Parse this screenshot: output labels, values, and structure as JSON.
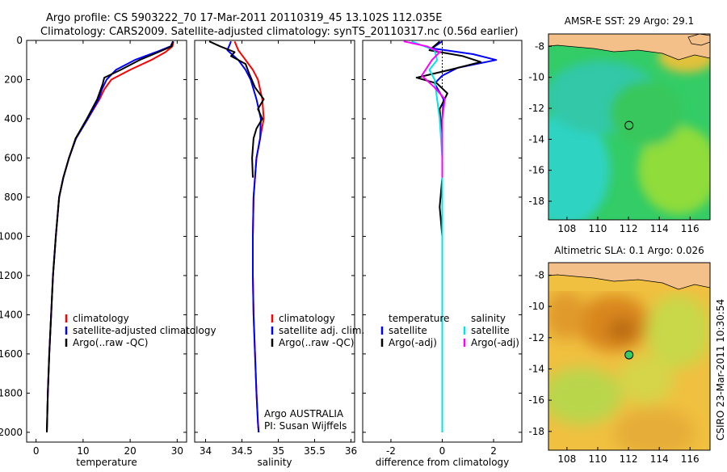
{
  "header": {
    "line1": "Argo profile: CS 5903222_70 17-Mar-2011 20110319_45 13.102S 112.035E",
    "line2": "Climatology: CARS2009. Satellite-adjusted climatology: synTS_20110317.nc (0.56d earlier)"
  },
  "side_caption": "CSIRO 23-Mar-2011 10:30:54",
  "colors": {
    "climatology": "#ff0000",
    "satellite": "#0000ff",
    "argo": "#000000",
    "diff_temp_satellite": "#0000ff",
    "diff_sal_satellite": "#00e5e5",
    "diff_sal_argo": "#ff00ff",
    "land": "#f4c08a"
  },
  "chart_data": [
    {
      "type": "line",
      "panel": "temperature",
      "xlabel": "temperature",
      "ylabel": "",
      "xlim": [
        -2,
        32
      ],
      "ylim": [
        2050,
        0
      ],
      "xticks": [
        0,
        10,
        20,
        30
      ],
      "yticks": [
        0,
        200,
        400,
        600,
        800,
        1000,
        1200,
        1400,
        1600,
        1800,
        2000
      ],
      "legend": {
        "placement": "lower-middle",
        "entries": [
          "climatology",
          "satellite-adjusted climatology",
          "Argo(..raw -QC)"
        ]
      },
      "series": [
        {
          "name": "climatology",
          "x": [
            29.2,
            29.0,
            27.5,
            24.5,
            20.0,
            16.0,
            14.5,
            13.5,
            11.0,
            8.5,
            7.0,
            5.8,
            4.9,
            4.2,
            3.6,
            3.2,
            2.8,
            2.5,
            2.3
          ],
          "y": [
            5,
            30,
            60,
            100,
            150,
            200,
            250,
            300,
            400,
            500,
            600,
            700,
            800,
            1000,
            1200,
            1400,
            1600,
            1800,
            2000
          ]
        },
        {
          "name": "satellite-adjusted climatology",
          "x": [
            29.1,
            28.6,
            25.5,
            21.0,
            17.0,
            15.0,
            14.0,
            13.3,
            11.0,
            8.5,
            7.0,
            5.8,
            4.9,
            4.2,
            3.6,
            3.2,
            2.8,
            2.5,
            2.3
          ],
          "y": [
            5,
            30,
            60,
            100,
            150,
            200,
            250,
            300,
            400,
            500,
            600,
            700,
            800,
            1000,
            1200,
            1400,
            1600,
            1800,
            2000
          ]
        },
        {
          "name": "Argo(..raw -QC)",
          "x": [
            29.1,
            28.8,
            26.0,
            22.0,
            18.0,
            14.5,
            14.2,
            13.0,
            10.8,
            8.4,
            7.0,
            5.8,
            4.9,
            4.2,
            3.6,
            3.2,
            2.8,
            2.5,
            2.3
          ],
          "y": [
            5,
            30,
            60,
            100,
            150,
            190,
            220,
            300,
            400,
            500,
            600,
            700,
            800,
            1000,
            1200,
            1400,
            1600,
            1800,
            2000
          ]
        }
      ]
    },
    {
      "type": "line",
      "panel": "salinity",
      "xlabel": "salinity",
      "xlim": [
        33.85,
        36.05
      ],
      "ylim": [
        2050,
        0
      ],
      "xticks": [
        34,
        34.5,
        35,
        35.5,
        36
      ],
      "legend": {
        "placement": "lower-right",
        "entries": [
          "climatology",
          "satellite adj. clim.",
          "Argo(..raw -QC)"
        ]
      },
      "annotations": [
        "Argo AUSTRALIA",
        "PI: Susan Wijffels"
      ],
      "series": [
        {
          "name": "climatology",
          "x": [
            34.4,
            34.45,
            34.55,
            34.65,
            34.72,
            34.78,
            34.8,
            34.75,
            34.7,
            34.68,
            34.66,
            34.65,
            34.65,
            34.66,
            34.68,
            34.7,
            34.72,
            34.73
          ],
          "y": [
            5,
            50,
            100,
            150,
            200,
            300,
            400,
            500,
            600,
            700,
            800,
            1000,
            1200,
            1400,
            1600,
            1800,
            1950,
            2000
          ]
        },
        {
          "name": "satellite adj. clim.",
          "x": [
            34.35,
            34.3,
            34.45,
            34.55,
            34.62,
            34.7,
            34.76,
            34.75,
            34.7,
            34.68,
            34.66,
            34.65,
            34.65,
            34.66,
            34.68,
            34.7,
            34.72,
            34.73
          ],
          "y": [
            5,
            50,
            100,
            150,
            200,
            300,
            400,
            500,
            600,
            700,
            800,
            1000,
            1200,
            1400,
            1600,
            1800,
            1950,
            2000
          ]
        },
        {
          "name": "Argo(..raw -QC)",
          "x": [
            34.05,
            34.2,
            34.4,
            34.35,
            34.55,
            34.6,
            34.68,
            34.8,
            34.72,
            34.78,
            34.7,
            34.66,
            34.64,
            34.65
          ],
          "y": [
            5,
            30,
            60,
            80,
            120,
            170,
            240,
            300,
            350,
            400,
            450,
            500,
            600,
            700
          ]
        }
      ]
    },
    {
      "type": "line",
      "panel": "difference",
      "xlabel": "difference from climatology",
      "xlim": [
        -3.1,
        3.1
      ],
      "ylim": [
        2050,
        0
      ],
      "xticks": [
        -2,
        0,
        2
      ],
      "legend": {
        "placement": "lower",
        "groups": [
          {
            "title": "temperature",
            "entries": [
              "satellite",
              "Argo(-adj)"
            ]
          },
          {
            "title": "salinity",
            "entries": [
              "satellite",
              "Argo(-adj)"
            ]
          }
        ]
      },
      "series": [
        {
          "name": "temperature satellite",
          "x": [
            0.0,
            -0.4,
            1.2,
            2.1,
            0.6,
            0.0,
            -0.3,
            0.05,
            0.0,
            0.0,
            0.0,
            0.0,
            0.0,
            0.0
          ],
          "y": [
            5,
            40,
            70,
            100,
            140,
            180,
            220,
            300,
            400,
            600,
            800,
            1200,
            1600,
            2000
          ]
        },
        {
          "name": "temperature Argo(-adj)",
          "x": [
            -0.1,
            -0.5,
            0.8,
            1.5,
            0.3,
            -1.0,
            -0.2,
            0.2,
            -0.1,
            0.0,
            0.0,
            -0.1,
            0.0,
            0.0,
            0.0
          ],
          "y": [
            5,
            50,
            80,
            110,
            150,
            190,
            220,
            270,
            350,
            500,
            700,
            850,
            1000,
            1300,
            1600
          ]
        },
        {
          "name": "salinity satellite",
          "x": [
            -1.2,
            -0.3,
            -0.2,
            -0.5,
            -0.3,
            -0.2,
            -0.1,
            0.0,
            0.0,
            0.0,
            0.0,
            0.0
          ],
          "y": [
            5,
            50,
            100,
            150,
            200,
            300,
            400,
            600,
            800,
            1200,
            1600,
            2000
          ]
        },
        {
          "name": "salinity Argo(-adj)",
          "x": [
            -1.5,
            -0.6,
            -0.1,
            -0.4,
            -0.8,
            -0.3,
            0.1,
            0.0,
            0.0,
            0.0
          ],
          "y": [
            5,
            30,
            60,
            100,
            180,
            240,
            300,
            400,
            500,
            700
          ]
        }
      ]
    },
    {
      "type": "heatmap",
      "panel": "AMSR-E SST",
      "title": "AMSR-E SST: 29 Argo: 29.1",
      "xlim": [
        106.8,
        117.3
      ],
      "ylim": [
        -19.2,
        -7.2
      ],
      "xticks": [
        108,
        110,
        112,
        114,
        116
      ],
      "yticks": [
        -8,
        -10,
        -12,
        -14,
        -16,
        -18
      ],
      "marker": {
        "lon": 112.035,
        "lat": -13.102,
        "filled": false
      }
    },
    {
      "type": "heatmap",
      "panel": "Altimetric SLA",
      "title": "Altimetric SLA: 0.1 Argo: 0.026",
      "xlim": [
        106.8,
        117.3
      ],
      "ylim": [
        -19.2,
        -7.2
      ],
      "xticks": [
        108,
        110,
        112,
        114,
        116
      ],
      "yticks": [
        -8,
        -10,
        -12,
        -14,
        -16,
        -18
      ],
      "marker": {
        "lon": 112.035,
        "lat": -13.102,
        "filled": true
      }
    }
  ]
}
